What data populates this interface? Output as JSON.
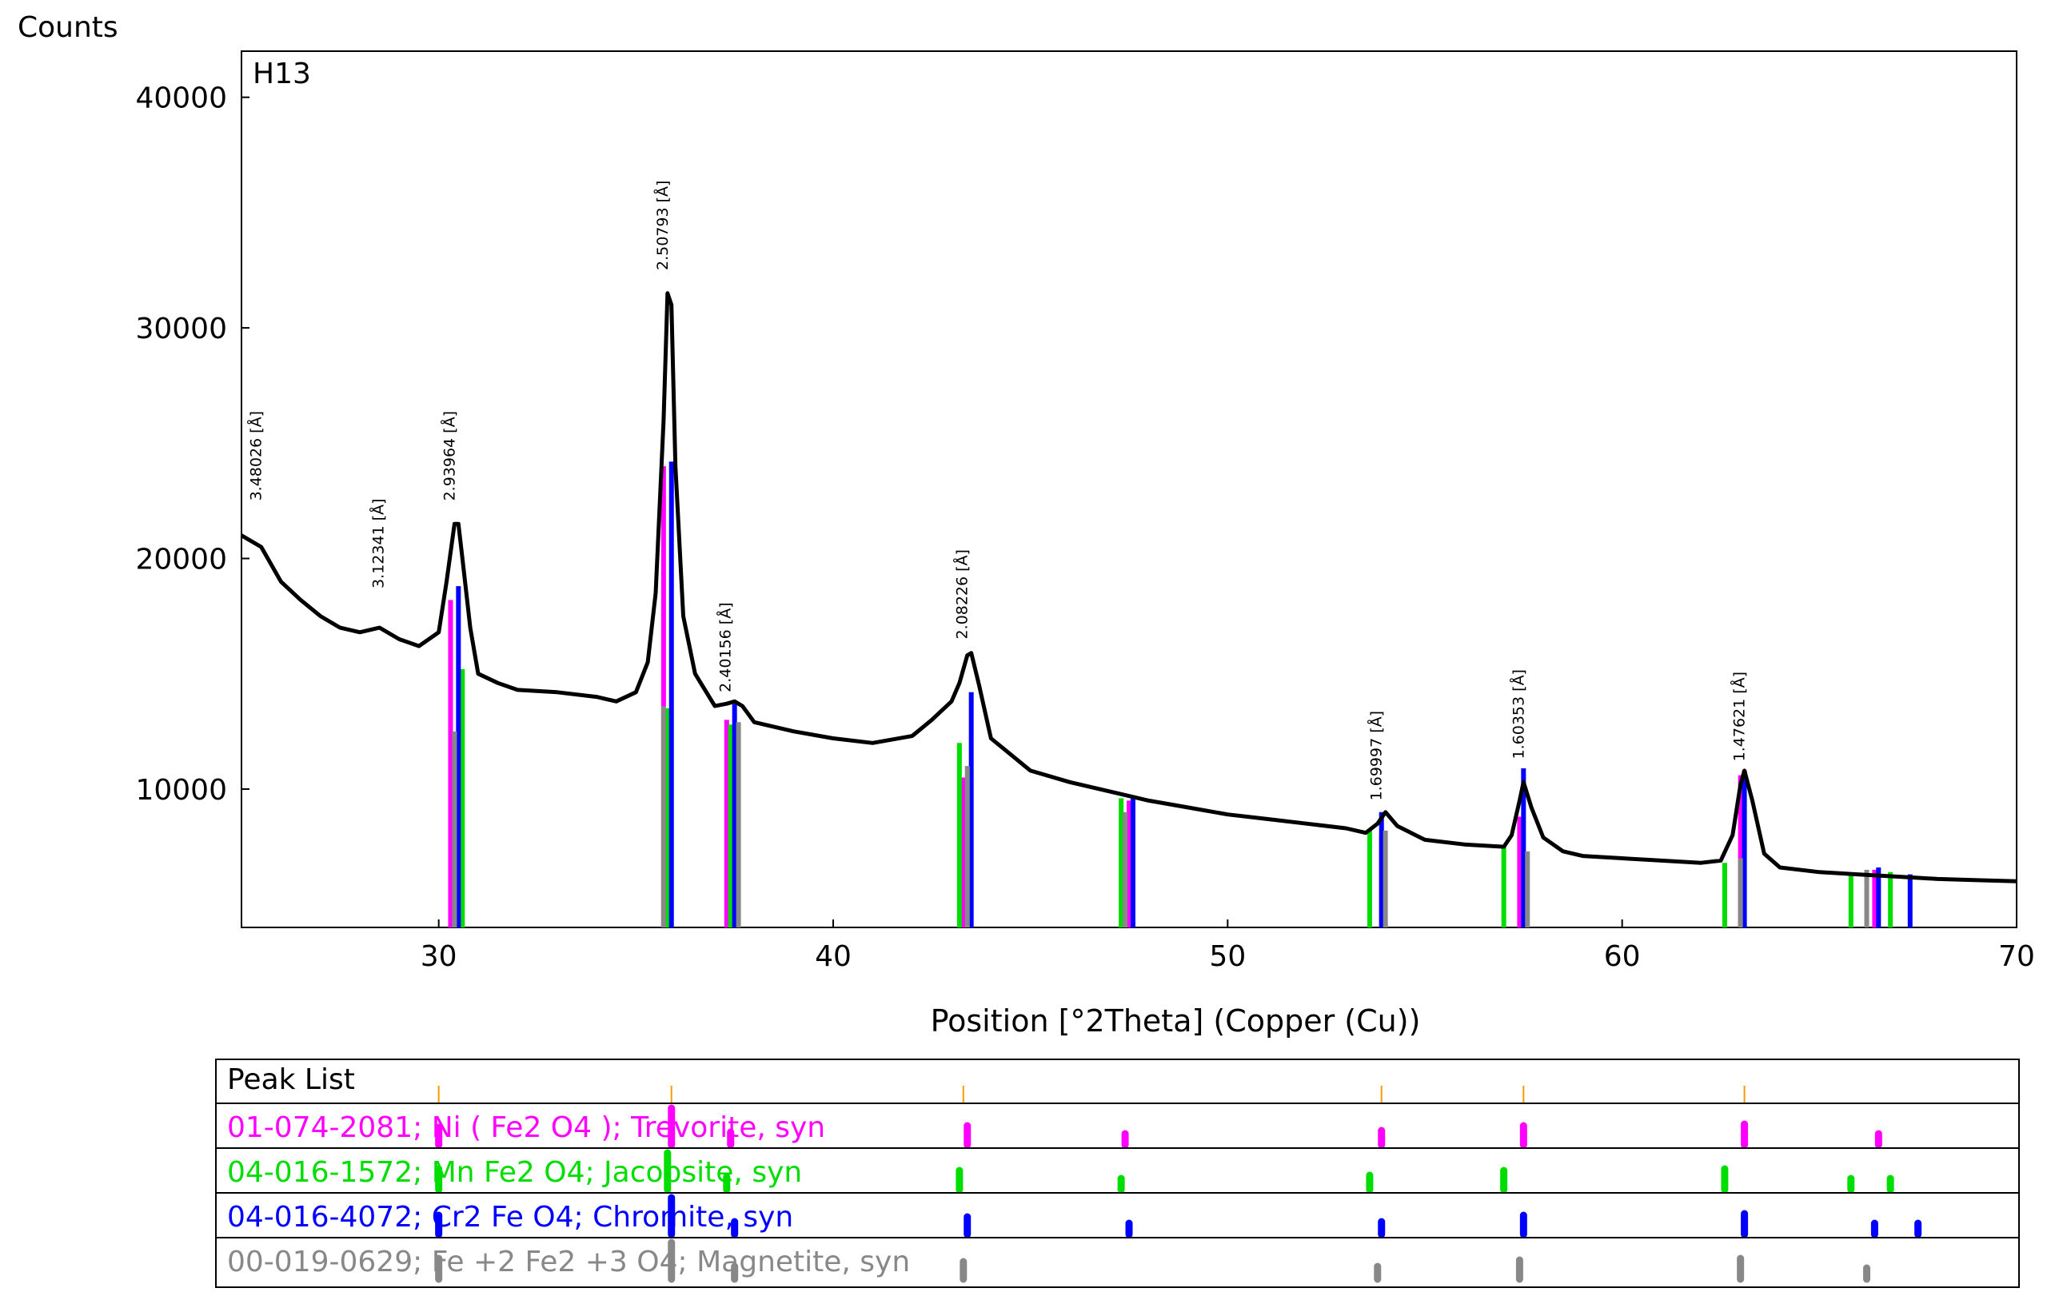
{
  "chart_data": {
    "type": "line",
    "ylabel": "Counts",
    "xlabel": "Position [°2Theta] (Copper (Cu))",
    "title": "H13",
    "xlim": [
      25,
      70
    ],
    "ylim": [
      4000,
      42000
    ],
    "x_ticks": [
      30,
      40,
      50,
      60,
      70
    ],
    "y_ticks": [
      10000,
      20000,
      30000,
      40000
    ],
    "grid": false,
    "series": [
      {
        "color": "#000000",
        "x": [
          25,
          25.5,
          26,
          26.5,
          27,
          27.5,
          28,
          28.5,
          29,
          29.5,
          30,
          30.2,
          30.4,
          30.5,
          30.6,
          30.8,
          31,
          31.5,
          32,
          33,
          34,
          34.5,
          35,
          35.3,
          35.5,
          35.7,
          35.8,
          35.9,
          36,
          36.2,
          36.5,
          37,
          37.3,
          37.5,
          37.7,
          38,
          39,
          40,
          41,
          42,
          42.5,
          43,
          43.2,
          43.4,
          43.5,
          43.7,
          44,
          44.5,
          45,
          46,
          47,
          48,
          49,
          50,
          51,
          52,
          53,
          53.5,
          53.8,
          54,
          54.3,
          55,
          56,
          57,
          57.2,
          57.4,
          57.5,
          57.7,
          58,
          58.5,
          59,
          60,
          61,
          62,
          62.5,
          62.8,
          63,
          63.1,
          63.3,
          63.6,
          64,
          65,
          66,
          67,
          68,
          69,
          70
        ],
        "y": [
          21000,
          20500,
          19000,
          18200,
          17500,
          17000,
          16800,
          17000,
          16500,
          16200,
          16800,
          19000,
          21500,
          21500,
          20000,
          17000,
          15000,
          14600,
          14300,
          14200,
          14000,
          13800,
          14200,
          15500,
          18500,
          26000,
          31500,
          31000,
          24000,
          17500,
          15000,
          13600,
          13700,
          13800,
          13600,
          12900,
          12500,
          12200,
          12000,
          12300,
          13000,
          13800,
          14600,
          15800,
          15900,
          14500,
          12200,
          11500,
          10800,
          10300,
          9900,
          9500,
          9200,
          8900,
          8700,
          8500,
          8300,
          8100,
          8500,
          9000,
          8400,
          7800,
          7600,
          7500,
          8000,
          9500,
          10300,
          9200,
          7900,
          7300,
          7100,
          7000,
          6900,
          6800,
          6900,
          8000,
          10200,
          10800,
          9500,
          7200,
          6600,
          6400,
          6300,
          6200,
          6100,
          6050,
          6000
        ]
      }
    ],
    "reference_lines": [
      {
        "color": "#ff00ff",
        "x": [
          30.3,
          35.7,
          37.3,
          43.3,
          47.5,
          53.9,
          57.4,
          63.0,
          66.4
        ],
        "y": [
          18200,
          24000,
          13000,
          10500,
          9500,
          8000,
          8800,
          10600,
          6500
        ]
      },
      {
        "color": "#00dd00",
        "x": [
          30.6,
          35.8,
          37.4,
          43.2,
          47.3,
          53.6,
          57.0,
          62.6,
          65.8,
          66.8
        ],
        "y": [
          15200,
          13500,
          12800,
          12000,
          9600,
          8200,
          7500,
          6800,
          6300,
          6400
        ]
      },
      {
        "color": "#0000ff",
        "x": [
          30.5,
          35.9,
          37.5,
          43.5,
          47.6,
          53.9,
          57.5,
          63.1,
          66.5,
          67.3
        ],
        "y": [
          18800,
          24200,
          13700,
          14200,
          9700,
          9000,
          10900,
          10800,
          6600,
          6300
        ]
      },
      {
        "color": "#888888",
        "x": [
          30.4,
          35.7,
          37.6,
          43.4,
          47.4,
          54.0,
          57.6,
          63.0,
          66.2
        ],
        "y": [
          12500,
          13600,
          12900,
          11000,
          9000,
          8200,
          7300,
          7000,
          6500
        ]
      }
    ],
    "annotations": [
      {
        "x": 25.5,
        "y": 22500,
        "text": "3.48026 [Å]"
      },
      {
        "x": 28.6,
        "y": 18700,
        "text": "3.12341 [Å]"
      },
      {
        "x": 30.4,
        "y": 22500,
        "text": "2.93964 [Å]"
      },
      {
        "x": 35.8,
        "y": 32500,
        "text": "2.50793 [Å]"
      },
      {
        "x": 37.4,
        "y": 14200,
        "text": "2.40156 [Å]"
      },
      {
        "x": 43.4,
        "y": 16500,
        "text": "2.08226 [Å]"
      },
      {
        "x": 53.9,
        "y": 9500,
        "text": "1.69997 [Å]"
      },
      {
        "x": 57.5,
        "y": 11300,
        "text": "1.60353 [Å]"
      },
      {
        "x": 63.1,
        "y": 11200,
        "text": "1.47621 [Å]"
      }
    ]
  },
  "peak_list": {
    "title": "Peak List",
    "header_ticks_x": [
      30.0,
      35.9,
      43.3,
      53.9,
      57.5,
      63.1
    ],
    "phases": [
      {
        "label": "01-074-2081; Ni ( Fe2 O4 ); Trevorite, syn",
        "color": "#ff00ff",
        "peaks": [
          [
            30.0,
            0.4
          ],
          [
            35.9,
            1.0
          ],
          [
            37.4,
            0.25
          ],
          [
            43.4,
            0.45
          ],
          [
            47.4,
            0.2
          ],
          [
            53.9,
            0.3
          ],
          [
            57.5,
            0.45
          ],
          [
            63.1,
            0.5
          ],
          [
            66.5,
            0.2
          ]
        ]
      },
      {
        "label": "04-016-1572; Mn Fe2 O4; Jacobsite, syn",
        "color": "#00dd00",
        "peaks": [
          [
            30.0,
            0.5
          ],
          [
            35.8,
            1.0
          ],
          [
            37.3,
            0.25
          ],
          [
            43.2,
            0.45
          ],
          [
            47.3,
            0.2
          ],
          [
            53.6,
            0.3
          ],
          [
            57.0,
            0.45
          ],
          [
            62.6,
            0.5
          ],
          [
            65.8,
            0.2
          ],
          [
            66.8,
            0.2
          ]
        ]
      },
      {
        "label": "04-016-4072; Cr2 Fe O4; Chromite, syn",
        "color": "#0000ff",
        "peaks": [
          [
            30.0,
            0.45
          ],
          [
            35.9,
            1.0
          ],
          [
            37.5,
            0.25
          ],
          [
            43.4,
            0.4
          ],
          [
            47.5,
            0.2
          ],
          [
            53.9,
            0.25
          ],
          [
            57.5,
            0.45
          ],
          [
            63.1,
            0.5
          ],
          [
            66.4,
            0.2
          ],
          [
            67.5,
            0.2
          ]
        ]
      },
      {
        "label": "00-019-0629; Fe +2 Fe2 +3 O4; Magnetite, syn",
        "color": "#888888",
        "peaks": [
          [
            30.0,
            0.5
          ],
          [
            35.9,
            1.0
          ],
          [
            37.5,
            0.25
          ],
          [
            43.3,
            0.4
          ],
          [
            53.8,
            0.25
          ],
          [
            57.4,
            0.45
          ],
          [
            63.0,
            0.5
          ],
          [
            66.2,
            0.2
          ]
        ]
      }
    ]
  }
}
